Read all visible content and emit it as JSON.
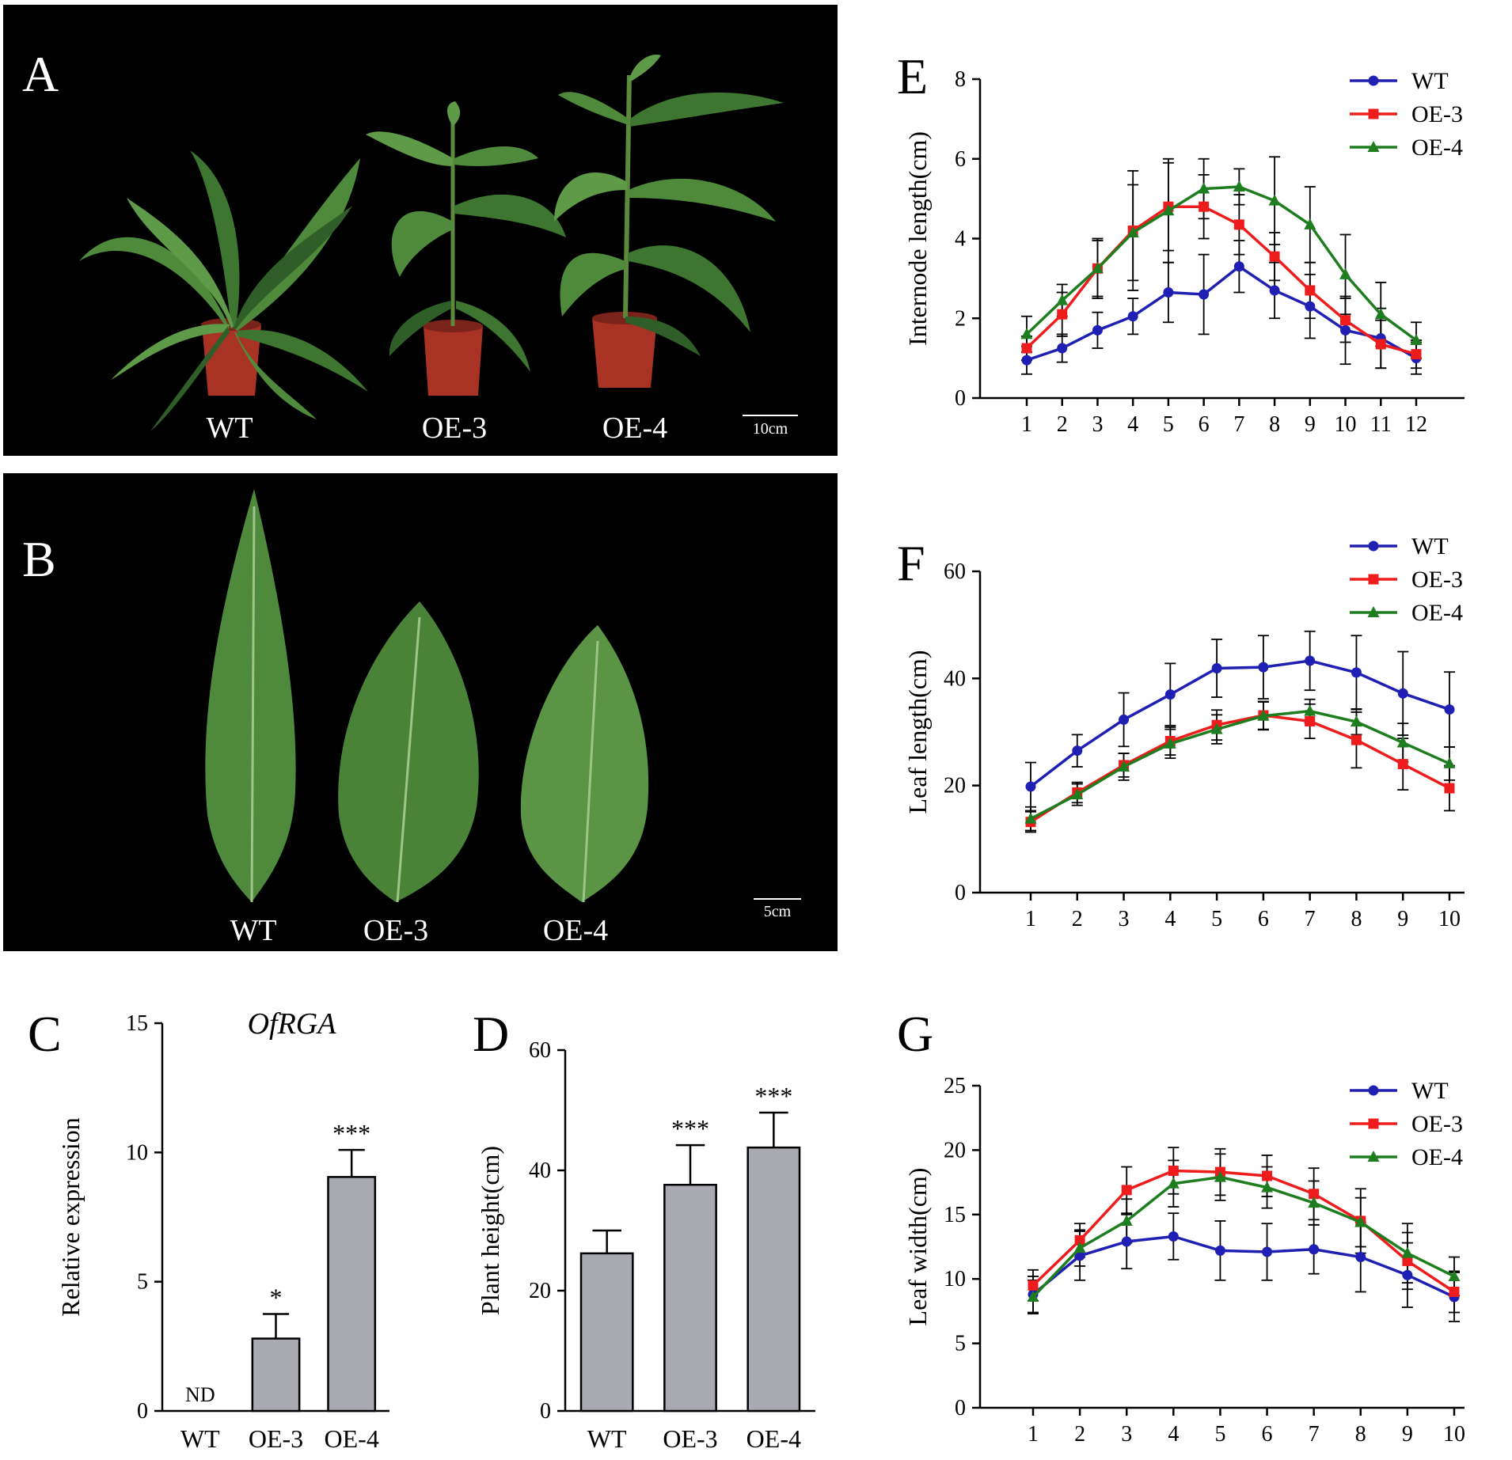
{
  "panels": {
    "A": {
      "letter": "A",
      "labels": [
        "WT",
        "OE-3",
        "OE-4"
      ],
      "scale_label": "10cm"
    },
    "B": {
      "letter": "B",
      "labels": [
        "WT",
        "OE-3",
        "OE-4"
      ],
      "scale_label": "5cm"
    }
  },
  "colors": {
    "WT": "#1f1fb4",
    "OE-3": "#ee1c1c",
    "OE-4": "#1e7d1e",
    "bar": "#a9a9b2",
    "axis": "#000000",
    "photo_bg": "#000000",
    "leaf": "#4f8a3c",
    "leaf_dark": "#2f5e28",
    "pot": "#a83224"
  },
  "chart_data": [
    {
      "id": "C",
      "letter": "C",
      "type": "bar",
      "title": "OfRGA",
      "ylabel": "Relative expression",
      "xlabel": "",
      "categories": [
        "WT",
        "OE-3",
        "OE-4"
      ],
      "values": [
        0,
        2.8,
        9.05
      ],
      "errors": [
        0,
        0.95,
        1.05
      ],
      "annotations": [
        "ND",
        "*",
        "***"
      ],
      "ylim": [
        0,
        15
      ],
      "yticks": [
        0,
        5,
        10,
        15
      ]
    },
    {
      "id": "D",
      "letter": "D",
      "type": "bar",
      "title": "",
      "ylabel": "Plant height(cm)",
      "xlabel": "",
      "categories": [
        "WT",
        "OE-3",
        "OE-4"
      ],
      "values": [
        26.2,
        37.6,
        43.8
      ],
      "errors": [
        3.8,
        6.6,
        5.8
      ],
      "annotations": [
        "",
        "***",
        "***"
      ],
      "ylim": [
        0,
        60
      ],
      "yticks": [
        0,
        20,
        40,
        60
      ]
    },
    {
      "id": "E",
      "letter": "E",
      "type": "line",
      "title": "",
      "ylabel": "Internode length(cm)",
      "xlabel": "",
      "x": [
        1,
        2,
        3,
        4,
        5,
        6,
        7,
        8,
        9,
        10,
        11,
        12
      ],
      "ylim": [
        0,
        8
      ],
      "yticks": [
        0,
        2,
        4,
        6,
        8
      ],
      "legend_position": "top-right",
      "series": [
        {
          "name": "WT",
          "marker": "circle",
          "values": [
            0.95,
            1.25,
            1.7,
            2.05,
            2.65,
            2.6,
            3.3,
            2.7,
            2.3,
            1.7,
            1.5,
            1.0
          ],
          "errors": [
            0.35,
            0.35,
            0.45,
            0.45,
            0.75,
            1.0,
            0.65,
            0.7,
            0.8,
            0.85,
            0.75,
            0.4
          ]
        },
        {
          "name": "OE-3",
          "marker": "square",
          "values": [
            1.25,
            2.1,
            3.25,
            4.2,
            4.8,
            4.8,
            4.35,
            3.55,
            2.7,
            1.95,
            1.35,
            1.1
          ],
          "errors": [
            0.3,
            0.55,
            0.75,
            1.5,
            1.1,
            0.8,
            0.75,
            0.6,
            0.7,
            0.55,
            0.6,
            0.35
          ]
        },
        {
          "name": "OE-4",
          "marker": "triangle",
          "values": [
            1.6,
            2.45,
            3.25,
            4.15,
            4.7,
            5.25,
            5.3,
            4.95,
            4.35,
            3.1,
            2.1,
            1.45
          ],
          "errors": [
            0.45,
            0.4,
            0.7,
            1.2,
            1.3,
            0.75,
            0.45,
            1.1,
            0.95,
            1.0,
            0.8,
            0.45
          ]
        }
      ]
    },
    {
      "id": "F",
      "letter": "F",
      "type": "line",
      "title": "",
      "ylabel": "Leaf length(cm)",
      "xlabel": "",
      "x": [
        1,
        2,
        3,
        4,
        5,
        6,
        7,
        8,
        9,
        10
      ],
      "ylim": [
        0,
        60
      ],
      "yticks": [
        0,
        20,
        40,
        60
      ],
      "legend_position": "top-right",
      "series": [
        {
          "name": "WT",
          "marker": "circle",
          "values": [
            19.8,
            26.5,
            32.3,
            37.0,
            41.9,
            42.1,
            43.3,
            41.1,
            37.2,
            34.2
          ],
          "errors": [
            4.5,
            3.0,
            5.0,
            5.8,
            5.4,
            5.9,
            5.5,
            6.9,
            7.8,
            7.0
          ]
        },
        {
          "name": "OE-3",
          "marker": "square",
          "values": [
            13.2,
            18.7,
            23.8,
            28.3,
            31.3,
            33.1,
            32.0,
            28.5,
            24.0,
            19.5
          ],
          "errors": [
            1.9,
            1.9,
            2.2,
            2.6,
            2.8,
            2.6,
            3.2,
            5.2,
            4.8,
            4.2
          ]
        },
        {
          "name": "OE-4",
          "marker": "triangle",
          "values": [
            13.8,
            18.3,
            23.5,
            27.8,
            30.5,
            33.0,
            33.9,
            31.9,
            28.0,
            24.1
          ],
          "errors": [
            2.2,
            2.0,
            2.5,
            2.7,
            2.7,
            2.6,
            2.2,
            2.4,
            3.6,
            3.1
          ]
        }
      ]
    },
    {
      "id": "G",
      "letter": "G",
      "type": "line",
      "title": "",
      "ylabel": "Leaf width(cm)",
      "xlabel": "",
      "x": [
        1,
        2,
        3,
        4,
        5,
        6,
        7,
        8,
        9,
        10
      ],
      "ylim": [
        0,
        25
      ],
      "yticks": [
        0,
        5,
        10,
        15,
        20,
        25
      ],
      "legend_position": "top-right",
      "series": [
        {
          "name": "WT",
          "marker": "circle",
          "values": [
            8.8,
            11.8,
            12.9,
            13.3,
            12.2,
            12.1,
            12.3,
            11.7,
            10.3,
            8.6
          ],
          "errors": [
            1.4,
            1.9,
            2.1,
            1.8,
            2.3,
            2.2,
            1.9,
            2.7,
            2.5,
            1.9
          ]
        },
        {
          "name": "OE-3",
          "marker": "square",
          "values": [
            9.5,
            13.0,
            16.9,
            18.4,
            18.3,
            18.0,
            16.6,
            14.5,
            11.4,
            9.0
          ],
          "errors": [
            1.2,
            1.3,
            1.8,
            1.8,
            1.8,
            1.6,
            2.0,
            2.5,
            2.2,
            1.6
          ]
        },
        {
          "name": "OE-4",
          "marker": "triangle",
          "values": [
            8.6,
            12.4,
            14.5,
            17.4,
            17.9,
            17.1,
            15.9,
            14.4,
            12.0,
            10.2
          ],
          "errors": [
            1.3,
            1.4,
            1.7,
            1.8,
            1.8,
            1.6,
            1.7,
            1.9,
            2.3,
            1.5
          ]
        }
      ]
    }
  ]
}
